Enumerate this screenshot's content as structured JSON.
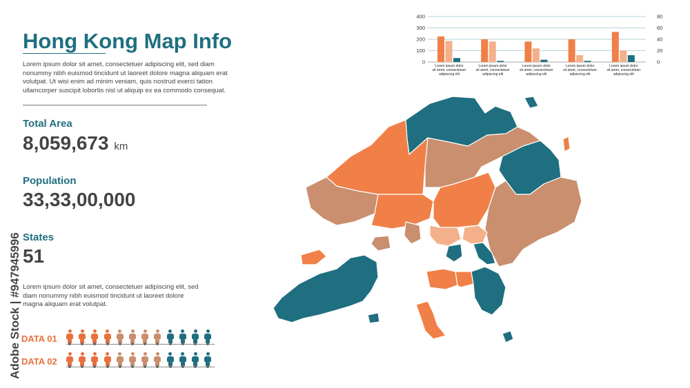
{
  "header": {
    "title": "Hong Kong Map Info",
    "intro": "Lorem ipsum dolor sit amet, consectetuer adipiscing elit, sed diam nonummy nibh euismod tincidunt ut laoreet dolore magna aliquam erat volutpat. Ut wisi enim ad minim veniam, quis nostrud exerci tation ullamcorper suscipit lobortis nisl ut aliquip ex ea commodo consequat."
  },
  "stats": {
    "total_area": {
      "label": "Total Area",
      "value": "8,059,673",
      "unit": "km"
    },
    "population": {
      "label": "Population",
      "value": "33,33,00,000"
    },
    "states": {
      "label": "States",
      "value": "51"
    }
  },
  "description": "Lorem ipsum dolor sit amet, consectetuer adipiscing elit, sed diam nonummy nibh euismod tincidunt ut laoreet dolore magna aliquam erat volutpat.",
  "pictogram": {
    "rows": [
      {
        "label": "DATA 01",
        "colors": [
          "#e9703e",
          "#e9703e",
          "#e9703e",
          "#e9703e",
          "#c98f6e",
          "#c98f6e",
          "#c98f6e",
          "#c98f6e",
          "#1f6f80",
          "#1f6f80",
          "#1f6f80",
          "#1f6f80"
        ]
      },
      {
        "label": "DATA 02",
        "colors": [
          "#e9703e",
          "#e9703e",
          "#e9703e",
          "#e9703e",
          "#c98f6e",
          "#c98f6e",
          "#c98f6e",
          "#c98f6e",
          "#1f6f80",
          "#1f6f80",
          "#1f6f80",
          "#1f6f80"
        ]
      }
    ]
  },
  "watermark": "Adobe Stock | #947945996",
  "colors": {
    "teal": "#1f6f80",
    "orange": "#f08048",
    "tan": "#c98f6e",
    "light_orange": "#f4b08a"
  },
  "chart_data": {
    "type": "bar",
    "categories": [
      "Lorem ipsum dolor sit amet, consectetuer adipiscing elit",
      "Lorem ipsum dolor sit amet, consectetuer adipiscing elit",
      "Lorem ipsum dolor sit amet, consectetuer adipiscing elit",
      "Lorem ipsum dolor sit amet, consectetuer adipiscing elit",
      "Lorem ipsum dolor sit amet, consectetuer adipiscing elit"
    ],
    "series": [
      {
        "values": [
          225,
          200,
          180,
          200,
          265
        ],
        "color": "#f08048",
        "axis": "left"
      },
      {
        "values": [
          185,
          180,
          120,
          60,
          100
        ],
        "color": "#f4b08a",
        "axis": "left"
      },
      {
        "values": [
          7,
          2,
          4,
          2,
          12
        ],
        "color": "#1f6f80",
        "axis": "right"
      }
    ],
    "y_left": {
      "range": [
        0,
        400
      ],
      "ticks": [
        "0",
        "100",
        "200",
        "300",
        "400"
      ]
    },
    "y_right": {
      "range": [
        0,
        80
      ],
      "ticks": [
        "0",
        "20",
        "40",
        "60",
        "80"
      ]
    },
    "grid": true
  }
}
